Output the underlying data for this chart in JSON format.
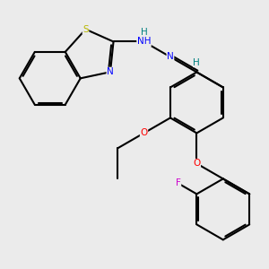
{
  "bg_color": "#ebebeb",
  "atom_colors": {
    "S": "#b8b800",
    "N": "#0000ff",
    "O": "#ff0000",
    "F": "#cc00cc",
    "H": "#008080"
  },
  "lw": 1.5,
  "fs": 7.5
}
